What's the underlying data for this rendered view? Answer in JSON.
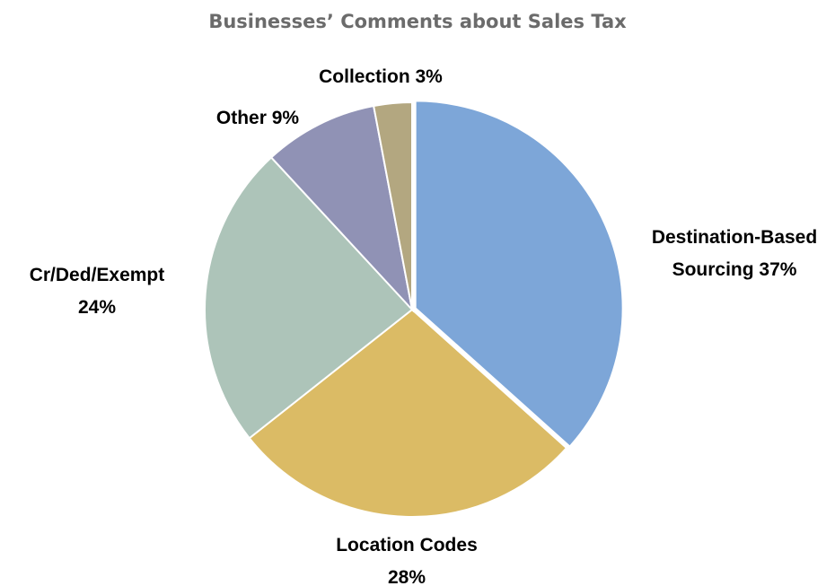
{
  "chart_data": {
    "type": "pie",
    "title": "Businesses’ Comments about Sales Tax",
    "slices": [
      {
        "name": "Destination-Based Sourcing",
        "value": 37,
        "color": "#7da6d8",
        "label_lines": [
          "Destination-Based",
          "Sourcing 37%"
        ]
      },
      {
        "name": "Location Codes",
        "value": 28,
        "color": "#dbbb65",
        "label_lines": [
          "Location Codes",
          "28%"
        ]
      },
      {
        "name": "Cr/Ded/Exempt",
        "value": 24,
        "color": "#adc4b9",
        "label_lines": [
          "Cr/Ded/Exempt",
          "24%"
        ]
      },
      {
        "name": "Other",
        "value": 9,
        "color": "#9092b5",
        "label_lines": [
          "Other 9%"
        ]
      },
      {
        "name": "Collection",
        "value": 3,
        "color": "#b3a780",
        "label_lines": [
          "Collection 3%"
        ]
      }
    ],
    "start_angle": "12 o'clock",
    "direction": "clockwise",
    "exploded_slice": "Destination-Based Sourcing",
    "legend": "none"
  }
}
